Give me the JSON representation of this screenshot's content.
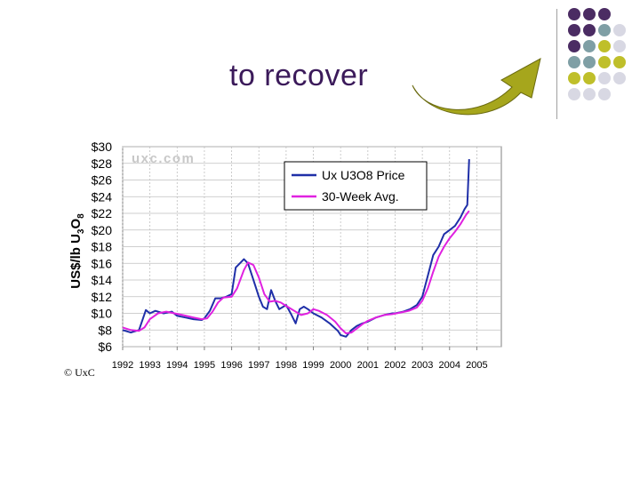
{
  "slide": {
    "title": "to recover",
    "copyright": "© UxC",
    "colors": {
      "purple": "#4b2c63",
      "teal": "#7f9fa5",
      "olive": "#bfbf2a",
      "lavender": "#d8d8e3"
    }
  },
  "decor": {
    "dot_grid": [
      [
        "purple",
        "purple",
        "purple",
        null
      ],
      [
        "purple",
        "purple",
        "teal",
        "lavender"
      ],
      [
        "purple",
        "teal",
        "olive",
        "lavender"
      ],
      [
        "teal",
        "teal",
        "olive",
        "olive"
      ],
      [
        "olive",
        "olive",
        "lavender",
        "lavender"
      ],
      [
        "lavender",
        "lavender",
        "lavender",
        null
      ]
    ],
    "arrow_icon": "curved-up-right-arrow",
    "arrow_color": "#a6a61c"
  },
  "chart_data": {
    "type": "line",
    "title": "",
    "watermark": "uxc.com",
    "ylabel": "US$/lb U3O8",
    "ylim": [
      6,
      30
    ],
    "yticks": [
      6,
      8,
      10,
      12,
      14,
      16,
      18,
      20,
      22,
      24,
      26,
      28,
      30
    ],
    "xlim": [
      1992,
      2005.9
    ],
    "xtick_labels": [
      "1992",
      "1993",
      "1994",
      "1995",
      "1996",
      "1997",
      "1998",
      "1999",
      "2000",
      "2001",
      "2002",
      "2003",
      "2004",
      "2005"
    ],
    "grid": true,
    "legend_position": "top-right",
    "series": [
      {
        "name": "Ux U3O8 Price",
        "color": "#1f2fa8",
        "points": [
          [
            1992.0,
            8.0
          ],
          [
            1992.3,
            7.7
          ],
          [
            1992.6,
            8.0
          ],
          [
            1992.85,
            10.4
          ],
          [
            1993.0,
            10.0
          ],
          [
            1993.2,
            10.3
          ],
          [
            1993.5,
            10.0
          ],
          [
            1993.8,
            10.2
          ],
          [
            1994.0,
            9.7
          ],
          [
            1994.3,
            9.5
          ],
          [
            1994.6,
            9.3
          ],
          [
            1994.9,
            9.2
          ],
          [
            1995.0,
            9.4
          ],
          [
            1995.2,
            10.3
          ],
          [
            1995.4,
            11.8
          ],
          [
            1995.6,
            11.8
          ],
          [
            1995.8,
            12.0
          ],
          [
            1996.0,
            12.3
          ],
          [
            1996.15,
            15.5
          ],
          [
            1996.3,
            16.0
          ],
          [
            1996.45,
            16.5
          ],
          [
            1996.6,
            16.0
          ],
          [
            1996.75,
            14.5
          ],
          [
            1996.9,
            13.0
          ],
          [
            1997.0,
            12.0
          ],
          [
            1997.15,
            10.8
          ],
          [
            1997.3,
            10.5
          ],
          [
            1997.45,
            12.8
          ],
          [
            1997.6,
            11.5
          ],
          [
            1997.75,
            10.5
          ],
          [
            1997.9,
            10.8
          ],
          [
            1998.0,
            11.0
          ],
          [
            1998.2,
            9.8
          ],
          [
            1998.35,
            8.8
          ],
          [
            1998.5,
            10.5
          ],
          [
            1998.65,
            10.8
          ],
          [
            1998.8,
            10.5
          ],
          [
            1999.0,
            10.0
          ],
          [
            1999.3,
            9.5
          ],
          [
            1999.6,
            8.8
          ],
          [
            1999.9,
            7.9
          ],
          [
            2000.0,
            7.4
          ],
          [
            2000.2,
            7.2
          ],
          [
            2000.4,
            8.0
          ],
          [
            2000.6,
            8.5
          ],
          [
            2000.8,
            8.8
          ],
          [
            2001.0,
            9.0
          ],
          [
            2001.3,
            9.5
          ],
          [
            2001.6,
            9.8
          ],
          [
            2001.9,
            10.0
          ],
          [
            2002.0,
            10.0
          ],
          [
            2002.3,
            10.2
          ],
          [
            2002.55,
            10.5
          ],
          [
            2002.8,
            11.0
          ],
          [
            2003.0,
            12.0
          ],
          [
            2003.2,
            14.5
          ],
          [
            2003.4,
            17.0
          ],
          [
            2003.6,
            18.0
          ],
          [
            2003.8,
            19.5
          ],
          [
            2004.0,
            20.0
          ],
          [
            2004.2,
            20.5
          ],
          [
            2004.4,
            21.5
          ],
          [
            2004.55,
            22.5
          ],
          [
            2004.65,
            23.0
          ],
          [
            2004.72,
            28.5
          ]
        ]
      },
      {
        "name": "30-Week Avg.",
        "color": "#e021e0",
        "points": [
          [
            1992.0,
            8.3
          ],
          [
            1992.3,
            8.0
          ],
          [
            1992.6,
            7.9
          ],
          [
            1992.8,
            8.3
          ],
          [
            1993.0,
            9.3
          ],
          [
            1993.3,
            10.0
          ],
          [
            1993.6,
            10.2
          ],
          [
            1993.9,
            10.0
          ],
          [
            1994.2,
            9.8
          ],
          [
            1994.6,
            9.5
          ],
          [
            1994.9,
            9.3
          ],
          [
            1995.1,
            9.4
          ],
          [
            1995.3,
            10.2
          ],
          [
            1995.5,
            11.3
          ],
          [
            1995.7,
            11.9
          ],
          [
            1996.0,
            12.0
          ],
          [
            1996.2,
            13.0
          ],
          [
            1996.45,
            15.2
          ],
          [
            1996.6,
            16.1
          ],
          [
            1996.8,
            15.8
          ],
          [
            1997.0,
            14.3
          ],
          [
            1997.2,
            12.3
          ],
          [
            1997.4,
            11.4
          ],
          [
            1997.6,
            11.5
          ],
          [
            1997.8,
            11.3
          ],
          [
            1998.0,
            10.9
          ],
          [
            1998.3,
            10.3
          ],
          [
            1998.55,
            9.8
          ],
          [
            1998.8,
            10.0
          ],
          [
            1999.0,
            10.5
          ],
          [
            1999.2,
            10.3
          ],
          [
            1999.5,
            9.8
          ],
          [
            1999.8,
            9.0
          ],
          [
            2000.0,
            8.2
          ],
          [
            2000.2,
            7.6
          ],
          [
            2000.4,
            7.7
          ],
          [
            2000.6,
            8.2
          ],
          [
            2000.8,
            8.7
          ],
          [
            2001.0,
            9.1
          ],
          [
            2001.3,
            9.5
          ],
          [
            2001.6,
            9.8
          ],
          [
            2001.9,
            9.9
          ],
          [
            2002.2,
            10.1
          ],
          [
            2002.5,
            10.3
          ],
          [
            2002.8,
            10.7
          ],
          [
            2003.0,
            11.5
          ],
          [
            2003.2,
            13.0
          ],
          [
            2003.4,
            15.0
          ],
          [
            2003.6,
            16.8
          ],
          [
            2003.8,
            18.0
          ],
          [
            2004.0,
            19.0
          ],
          [
            2004.2,
            19.8
          ],
          [
            2004.4,
            20.7
          ],
          [
            2004.6,
            21.8
          ],
          [
            2004.72,
            22.3
          ]
        ]
      }
    ]
  }
}
